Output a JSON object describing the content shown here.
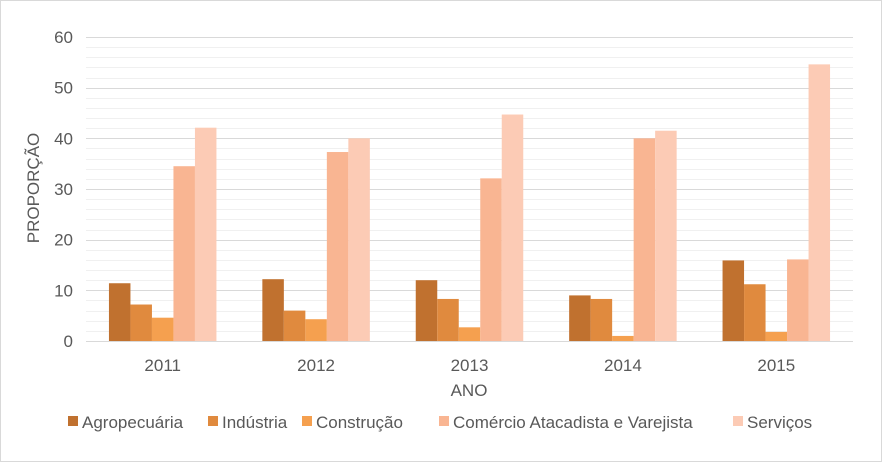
{
  "chart_data": {
    "type": "bar",
    "title": "",
    "xlabel": "ANO",
    "ylabel": "PROPORÇÃO",
    "ylim": [
      0,
      60
    ],
    "yticks": [
      0,
      10,
      20,
      30,
      40,
      50,
      60
    ],
    "grid": true,
    "legend_position": "bottom",
    "categories": [
      "2011",
      "2012",
      "2013",
      "2014",
      "2015"
    ],
    "series": [
      {
        "name": "Agropecuária",
        "color": "#c0712f",
        "values": [
          11.4,
          12.2,
          12.0,
          9.0,
          15.9
        ]
      },
      {
        "name": "Indústria",
        "color": "#e08a3e",
        "values": [
          7.2,
          6.0,
          8.3,
          8.3,
          11.2
        ]
      },
      {
        "name": "Construção",
        "color": "#f5a04f",
        "values": [
          4.6,
          4.3,
          2.7,
          1.0,
          1.8
        ]
      },
      {
        "name": "Comércio Atacadista e Varejista",
        "color": "#f9b592",
        "values": [
          34.5,
          37.3,
          32.1,
          40.0,
          16.1
        ]
      },
      {
        "name": "Serviços",
        "color": "#fccbb5",
        "values": [
          42.1,
          40.0,
          44.7,
          41.5,
          54.6
        ]
      }
    ]
  }
}
